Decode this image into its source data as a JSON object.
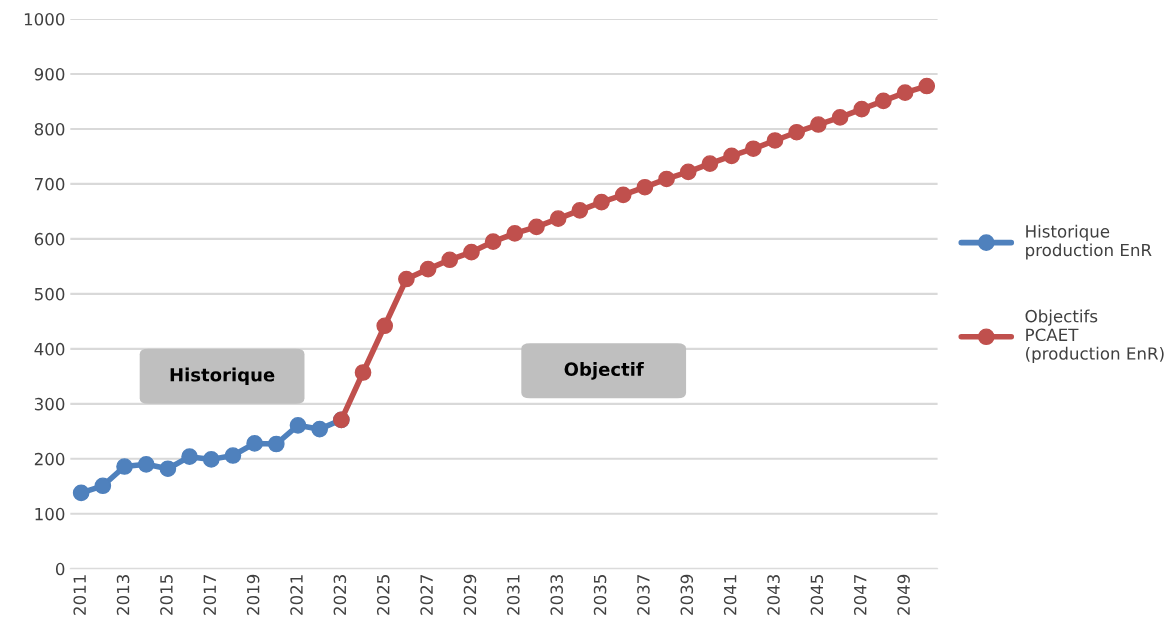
{
  "chart_data": {
    "type": "line",
    "categories": [
      "2011",
      null,
      "2013",
      null,
      "2015",
      null,
      "2017",
      null,
      "2019",
      null,
      "2021",
      null,
      "2023",
      null,
      "2025",
      null,
      "2027",
      null,
      "2029",
      null,
      "2031",
      null,
      "2033",
      null,
      "2035",
      null,
      "2037",
      null,
      "2039",
      null,
      "2041",
      null,
      "2043",
      null,
      "2045",
      null,
      "2047",
      null,
      "2049",
      null
    ],
    "series": [
      {
        "name": "Historique production EnR",
        "color": "#4f81bd",
        "values": [
          138,
          151,
          186,
          190,
          182,
          204,
          199,
          206,
          228,
          227,
          261,
          254,
          271,
          null,
          null,
          null,
          null,
          null,
          null,
          null,
          null,
          null,
          null,
          null,
          null,
          null,
          null,
          null,
          null,
          null,
          null,
          null,
          null,
          null,
          null,
          null,
          null,
          null,
          null,
          null
        ]
      },
      {
        "name": "Objectifs PCAET (production EnR)",
        "color": "#c0504d",
        "values": [
          null,
          null,
          null,
          null,
          null,
          null,
          null,
          null,
          null,
          null,
          null,
          null,
          271,
          357,
          442,
          527,
          545,
          562,
          576,
          595,
          610,
          622,
          637,
          652,
          667,
          680,
          694,
          709,
          722,
          737,
          751,
          764,
          779,
          794,
          808,
          821,
          836,
          851,
          866,
          878
        ]
      }
    ],
    "ylim": [
      0,
      1000
    ],
    "yticks": [
      0,
      100,
      200,
      300,
      400,
      500,
      600,
      700,
      800,
      900,
      1000
    ],
    "grid": "y",
    "legend": "right",
    "marker": "circle",
    "line_style": "solid",
    "annotations": [
      "Historique",
      "Objectif"
    ]
  }
}
